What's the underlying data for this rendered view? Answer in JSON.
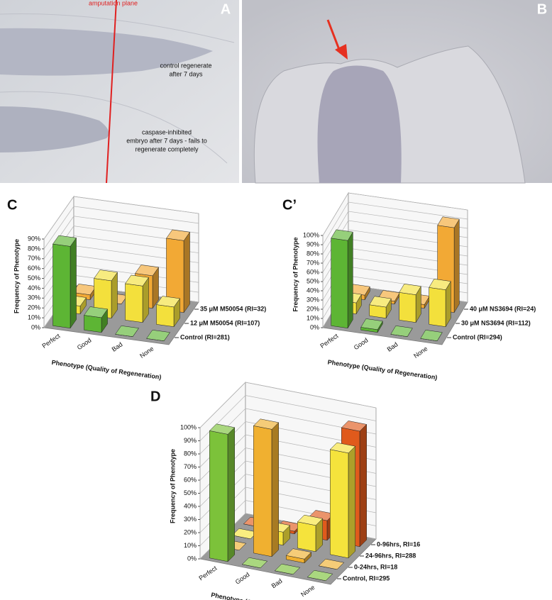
{
  "photos": [
    {
      "label": "A",
      "annotations": [
        {
          "lines": [
            "amputation plane"
          ]
        },
        {
          "lines": [
            "control regenerate",
            "after 7 days"
          ]
        },
        {
          "lines": [
            "caspase-inhibited",
            "embryo after 7 days - fails to",
            "regenerate completely"
          ]
        }
      ]
    },
    {
      "label": "B"
    }
  ],
  "chart_data": [
    {
      "type": "bar",
      "label": "C",
      "y_label": "Frequency of Phenotype",
      "x_label": "Phenotype (Quality of Regeneration)",
      "categories": [
        "Perfect",
        "Good",
        "Bad",
        "None"
      ],
      "ylim": [
        0,
        90
      ],
      "yticks": [
        {
          "value": 0,
          "label": "0%"
        },
        {
          "value": 10,
          "label": "10%"
        },
        {
          "value": 20,
          "label": "20%"
        },
        {
          "value": 30,
          "label": "30%"
        },
        {
          "value": 40,
          "label": "40%"
        },
        {
          "value": 50,
          "label": "50%"
        },
        {
          "value": 60,
          "label": "60%"
        },
        {
          "value": 70,
          "label": "70%"
        },
        {
          "value": 80,
          "label": "80%"
        },
        {
          "value": 90,
          "label": "90%"
        }
      ],
      "grid": true,
      "series": [
        {
          "name": "35 μM M50054 (RI=32)",
          "color": "#f2a935",
          "values": [
            5,
            0,
            33,
            73
          ]
        },
        {
          "name": "12 μM M50054 (RI=107)",
          "color": "#f3e03c",
          "values": [
            8,
            38,
            37,
            20
          ]
        },
        {
          "name": "Control (RI=281)",
          "color": "#5db534",
          "values": [
            83,
            15,
            0,
            0
          ]
        }
      ]
    },
    {
      "type": "bar",
      "label": "C’",
      "y_label": "Frequency of Phenotype",
      "x_label": "Phenotype (Quality of Regeneration)",
      "categories": [
        "Perfect",
        "Good",
        "Bad",
        "None"
      ],
      "ylim": [
        0,
        100
      ],
      "yticks": [
        {
          "value": 0,
          "label": "0%"
        },
        {
          "value": 10,
          "label": "10%"
        },
        {
          "value": 20,
          "label": "20%"
        },
        {
          "value": 30,
          "label": "30%"
        },
        {
          "value": 40,
          "label": "40%"
        },
        {
          "value": 50,
          "label": "50%"
        },
        {
          "value": 60,
          "label": "60%"
        },
        {
          "value": 70,
          "label": "70%"
        },
        {
          "value": 80,
          "label": "80%"
        },
        {
          "value": 90,
          "label": "90%"
        },
        {
          "value": 100,
          "label": "100%"
        }
      ],
      "grid": true,
      "series": [
        {
          "name": "40 μM NS3694 (RI=24)",
          "color": "#f2a935",
          "values": [
            5,
            3,
            4,
            92
          ]
        },
        {
          "name": "30 μM NS3694 (RI=112)",
          "color": "#f3e03c",
          "values": [
            12,
            12,
            30,
            40
          ]
        },
        {
          "name": "Control (RI=294)",
          "color": "#5db534",
          "values": [
            95,
            3,
            0,
            0
          ]
        }
      ]
    },
    {
      "type": "bar",
      "label": "D",
      "y_label": "Frequency of Phenotype",
      "x_label": "Phenotype (Quality of Regeneration)",
      "categories": [
        "Perfect",
        "Good",
        "Bad",
        "None"
      ],
      "ylim": [
        0,
        100
      ],
      "yticks": [
        {
          "value": 0,
          "label": "0%"
        },
        {
          "value": 10,
          "label": "10%"
        },
        {
          "value": 20,
          "label": "20%"
        },
        {
          "value": 30,
          "label": "30%"
        },
        {
          "value": 40,
          "label": "40%"
        },
        {
          "value": 50,
          "label": "50%"
        },
        {
          "value": 60,
          "label": "60%"
        },
        {
          "value": 70,
          "label": "70%"
        },
        {
          "value": 80,
          "label": "80%"
        },
        {
          "value": 90,
          "label": "90%"
        },
        {
          "value": 100,
          "label": "100%"
        }
      ],
      "grid": true,
      "series": [
        {
          "name": "0-96hrs, RI=16",
          "color": "#e05a1c",
          "values": [
            0,
            2,
            15,
            88
          ]
        },
        {
          "name": "24-96hrs, RI=288",
          "color": "#f5e33c",
          "values": [
            0,
            10,
            20,
            80
          ]
        },
        {
          "name": "0-24hrs, RI=18",
          "color": "#f0b030",
          "values": [
            0,
            97,
            3,
            0
          ]
        },
        {
          "name": "Control, RI=295",
          "color": "#7cc23a",
          "values": [
            97,
            0,
            0,
            0
          ]
        }
      ]
    }
  ]
}
